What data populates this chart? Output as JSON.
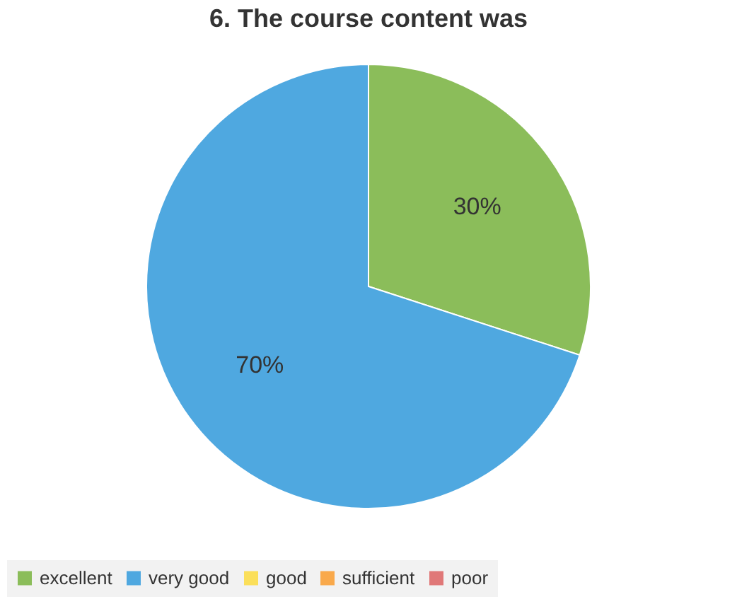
{
  "chart_data": {
    "type": "pie",
    "title": "6. The course content was",
    "categories": [
      "excellent",
      "very good",
      "good",
      "sufficient",
      "poor"
    ],
    "values": [
      30,
      70,
      0,
      0,
      0
    ],
    "colors": [
      "#8bbd5a",
      "#4fa8e0",
      "#fbdf5a",
      "#f9a94b",
      "#e07878"
    ],
    "value_labels": [
      "30%",
      "70%",
      null,
      null,
      null
    ],
    "legend": "bottom"
  }
}
